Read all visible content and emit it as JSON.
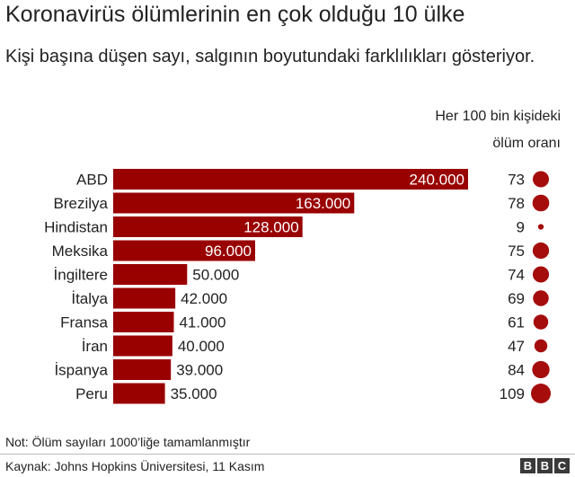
{
  "chart_data": {
    "type": "bar",
    "title": "Koronavirüs ölümlerinin en çok olduğu 10 ülke",
    "subtitle": "Kişi başına düşen sayı, salgının boyutundaki farklılıkları gösteriyor.",
    "categories": [
      "ABD",
      "Brezilya",
      "Hindistan",
      "Meksika",
      "İngiltere",
      "İtalya",
      "Fransa",
      "İran",
      "İspanya",
      "Peru"
    ],
    "values": [
      240000,
      163000,
      128000,
      96000,
      50000,
      42000,
      41000,
      40000,
      39000,
      35000
    ],
    "value_labels": [
      "240.000",
      "163.000",
      "128.000",
      "96.000",
      "50.000",
      "42.000",
      "41.000",
      "40.000",
      "39.000",
      "35.000"
    ],
    "rate_header": [
      "Her 100 bin kişideki",
      "ölüm oranı"
    ],
    "rates": [
      73,
      78,
      9,
      75,
      74,
      69,
      61,
      47,
      84,
      109
    ],
    "bar_color": "#990000",
    "dot_color": "#a50d0d"
  },
  "footer": {
    "note": "Not: Ölüm sayıları 1000’liğe tamamlanmıştır",
    "source": "Kaynak: Johns Hopkins Üniversitesi, 11 Kasım",
    "logo_letters": [
      "B",
      "B",
      "C"
    ]
  }
}
